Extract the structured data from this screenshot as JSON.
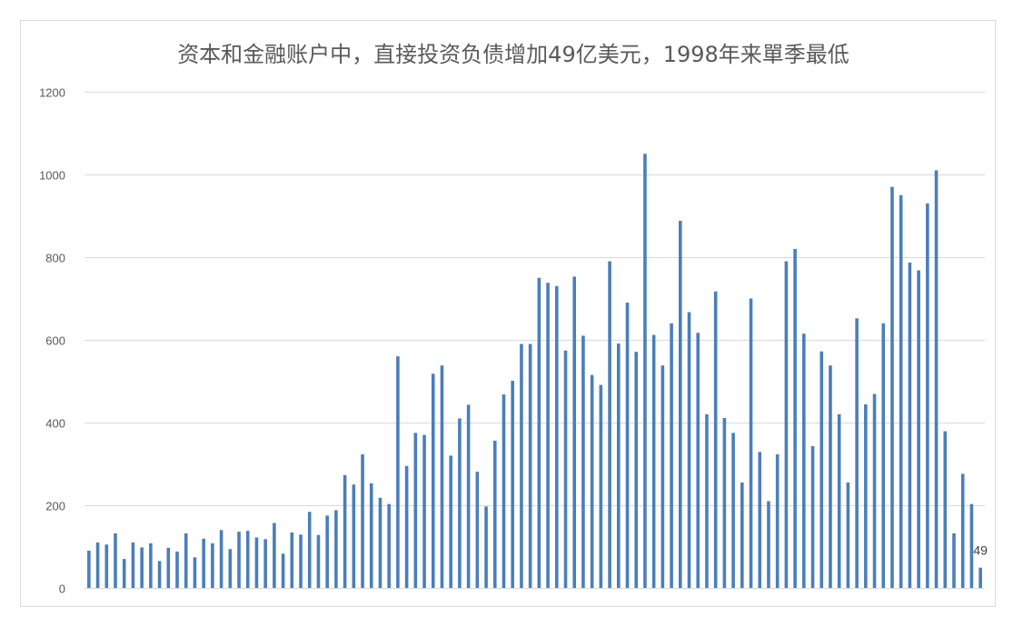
{
  "chart_data": {
    "type": "bar",
    "title": "资本和金融账户中，直接投资负债增加49亿美元，1998年来單季最低",
    "xlabel": "",
    "ylabel": "",
    "ylim": [
      0,
      1200
    ],
    "yticks": [
      0,
      200,
      400,
      600,
      800,
      1000,
      1200
    ],
    "grid": true,
    "legend": "none",
    "bar_color": "#4a7ebb",
    "gridline_color": "#d9d9d9",
    "frame_color": "#d9d9d9",
    "values": [
      90,
      110,
      105,
      132,
      70,
      110,
      98,
      108,
      65,
      97,
      88,
      132,
      74,
      119,
      108,
      140,
      94,
      136,
      138,
      122,
      118,
      157,
      83,
      134,
      129,
      184,
      128,
      175,
      188,
      273,
      250,
      323,
      253,
      218,
      203,
      560,
      295,
      375,
      370,
      518,
      538,
      320,
      410,
      443,
      281,
      197,
      356,
      468,
      501,
      590,
      590,
      750,
      738,
      730,
      574,
      753,
      610,
      515,
      491,
      790,
      591,
      690,
      571,
      1050,
      612,
      538,
      640,
      888,
      667,
      617,
      420,
      717,
      411,
      375,
      255,
      700,
      329,
      210,
      323,
      790,
      820,
      615,
      343,
      572,
      538,
      420,
      255,
      652,
      444,
      469,
      640,
      970,
      950,
      787,
      768,
      930,
      1010,
      379,
      132,
      276,
      203,
      49
    ],
    "data_labels": [
      {
        "index": 101,
        "text": "49"
      }
    ]
  }
}
